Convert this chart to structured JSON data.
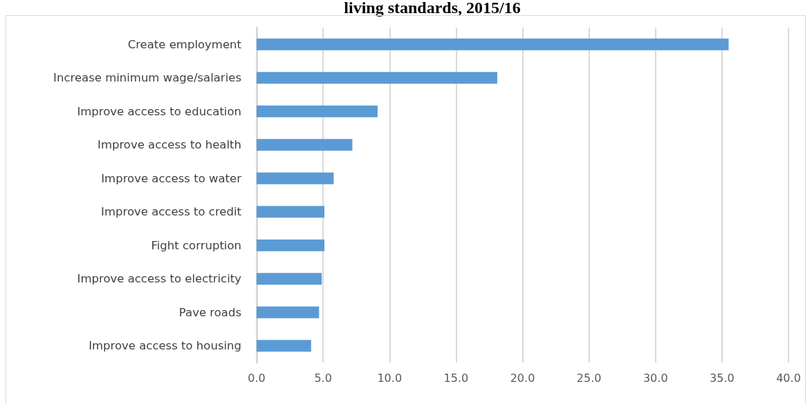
{
  "chart_data": {
    "type": "bar",
    "orientation": "horizontal",
    "title": "living standards, 2015/16",
    "categories": [
      "Create employment",
      "Increase minimum wage/salaries",
      "Improve access to education",
      "Improve access to health",
      "Improve access to water",
      "Improve access to credit",
      "Fight corruption",
      "Improve access to electricity",
      "Pave roads",
      "Improve access to housing"
    ],
    "values": [
      35.5,
      18.1,
      9.1,
      7.2,
      5.8,
      5.1,
      5.1,
      4.9,
      4.7,
      4.1
    ],
    "color": "#5b9bd5",
    "xlim": [
      0,
      40
    ],
    "xticks": [
      {
        "value": 0,
        "label": "0.0"
      },
      {
        "value": 5,
        "label": "5.0"
      },
      {
        "value": 10,
        "label": "10.0"
      },
      {
        "value": 15,
        "label": "15.0"
      },
      {
        "value": 20,
        "label": "20.0"
      },
      {
        "value": 25,
        "label": "25.0"
      },
      {
        "value": 30,
        "label": "30.0"
      },
      {
        "value": 35,
        "label": "35.0"
      },
      {
        "value": 40,
        "label": "40.0"
      }
    ],
    "grid": "x"
  }
}
